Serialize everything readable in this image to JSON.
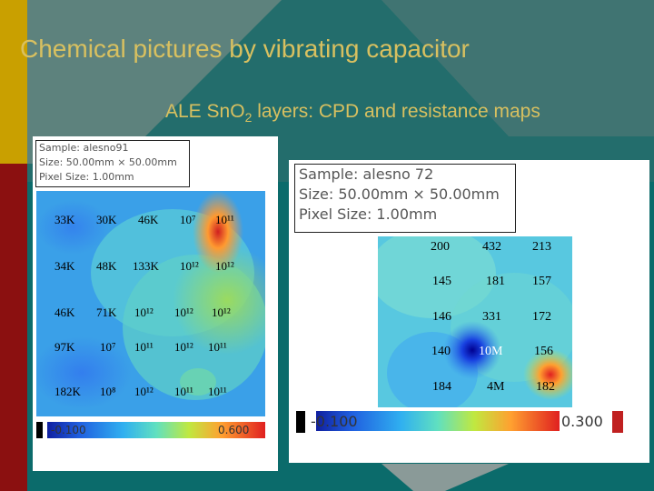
{
  "slide": {
    "title": "Chemical pictures by vibrating capacitor",
    "subtitle_main": "ALE Sn",
    "subtitle_o": "O",
    "subtitle_sub": "2",
    "subtitle_rest": " layers: CPD and resistance maps",
    "colors": {
      "title": "#d8c060",
      "teal": "#0b6b6b",
      "gold": "#c9a000",
      "maroon": "#8b1010"
    }
  },
  "left_map": {
    "sample": "Sample: alesno91",
    "size": "Size: 50.00mm × 50.00mm",
    "pixel": "Pixel Size: 1.00mm",
    "rows": [
      [
        "33K",
        "30K",
        "46K",
        "10⁷",
        "10¹¹"
      ],
      [
        "34K",
        "48K",
        "133K",
        "10¹²",
        "10¹²"
      ],
      [
        "46K",
        "71K",
        "10¹²",
        "10¹²",
        "10¹²"
      ],
      [
        "97K",
        "10⁷",
        "10¹¹",
        "10¹²",
        "10¹¹"
      ],
      [
        "182K",
        "10⁸",
        "10¹²",
        "10¹¹",
        "10¹¹"
      ]
    ],
    "cb_min": "-0.100",
    "cb_max": "0.600"
  },
  "right_map": {
    "sample": "Sample: alesno 72",
    "size": "Size: 50.00mm × 50.00mm",
    "pixel": "Pixel Size: 1.00mm",
    "rows": [
      [
        "200",
        "432",
        "213"
      ],
      [
        "145",
        "181",
        "157"
      ],
      [
        "146",
        "331",
        "172"
      ],
      [
        "140",
        "10M",
        "156"
      ],
      [
        "184",
        "4M",
        "182"
      ]
    ],
    "cb_min": "-0.100",
    "cb_max": "0.300"
  }
}
